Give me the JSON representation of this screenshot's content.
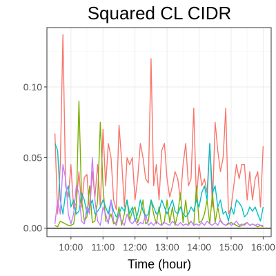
{
  "chart_data": {
    "type": "line",
    "title": "Squared CL CIDR",
    "xlabel": "Time (hour)",
    "ylabel": "",
    "xlim": [
      9.25,
      16.25
    ],
    "ylim": [
      -0.006,
      0.142
    ],
    "x_ticks": [
      {
        "value": 10,
        "label": "10:00"
      },
      {
        "value": 11,
        "label": "11:00"
      },
      {
        "value": 12,
        "label": "12:00"
      },
      {
        "value": 13,
        "label": "13:00"
      },
      {
        "value": 14,
        "label": "14:00"
      },
      {
        "value": 15,
        "label": "15:00"
      },
      {
        "value": 16,
        "label": "16:00"
      }
    ],
    "y_ticks": [
      {
        "value": 0.0,
        "label": "0.00"
      },
      {
        "value": 0.05,
        "label": "0.05"
      },
      {
        "value": 0.1,
        "label": "0.10"
      }
    ],
    "hline": 0,
    "grid": true,
    "legend": "none",
    "series": [
      {
        "color": "#F8766D",
        "x": [
          9.5,
          9.583,
          9.667,
          9.75,
          9.833,
          9.917,
          10.0,
          10.083,
          10.167,
          10.25,
          10.333,
          10.417,
          10.5,
          10.583,
          10.667,
          10.75,
          10.833,
          10.917,
          11.0,
          11.083,
          11.167,
          11.25,
          11.333,
          11.417,
          11.5,
          11.583,
          11.667,
          11.75,
          11.833,
          11.917,
          12.0,
          12.083,
          12.167,
          12.25,
          12.333,
          12.417,
          12.5,
          12.583,
          12.667,
          12.75,
          12.833,
          12.917,
          13.0,
          13.083,
          13.167,
          13.25,
          13.333,
          13.417,
          13.5,
          13.583,
          13.667,
          13.75,
          13.833,
          13.917,
          14.0,
          14.083,
          14.167,
          14.25,
          14.333,
          14.417,
          14.5,
          14.583,
          14.667,
          14.75,
          14.833,
          14.917,
          15.0,
          15.083,
          15.167,
          15.25,
          15.333,
          15.417,
          15.5,
          15.583,
          15.667,
          15.75,
          15.833,
          15.917,
          16.0
        ],
        "y": [
          0.067,
          0.01,
          0.045,
          0.137,
          0.03,
          0.022,
          0.045,
          0.014,
          0.018,
          0.04,
          0.015,
          0.036,
          0.038,
          0.012,
          0.04,
          0.022,
          0.045,
          0.015,
          0.07,
          0.03,
          0.06,
          0.05,
          0.02,
          0.013,
          0.073,
          0.048,
          0.015,
          0.05,
          0.045,
          0.05,
          0.02,
          0.035,
          0.06,
          0.05,
          0.035,
          0.032,
          0.12,
          0.03,
          0.045,
          0.02,
          0.055,
          0.06,
          0.035,
          0.022,
          0.03,
          0.04,
          0.035,
          0.02,
          0.045,
          0.06,
          0.03,
          0.035,
          0.085,
          0.02,
          0.045,
          0.03,
          0.035,
          0.025,
          0.06,
          0.015,
          0.075,
          0.055,
          0.04,
          0.05,
          0.085,
          0.01,
          0.015,
          0.03,
          0.045,
          0.035,
          0.045,
          0.045,
          0.02,
          0.04,
          0.02,
          0.035,
          0.04,
          0.015,
          0.058
        ]
      },
      {
        "color": "#7CAE00",
        "x": [
          9.5,
          9.583,
          9.667,
          9.75,
          9.833,
          9.917,
          10.0,
          10.083,
          10.167,
          10.25,
          10.333,
          10.417,
          10.5,
          10.583,
          10.667,
          10.75,
          10.833,
          10.917,
          11.0,
          11.083,
          11.167,
          11.25,
          11.333,
          11.417,
          11.5,
          11.583,
          11.667,
          11.75,
          11.833,
          11.917,
          12.0,
          12.083,
          12.167,
          12.25,
          12.333,
          12.417,
          12.5,
          12.583,
          12.667,
          12.75,
          12.833,
          12.917,
          13.0,
          13.083,
          13.167,
          13.25,
          13.333,
          13.417,
          13.5,
          13.583,
          13.667,
          13.75,
          13.833,
          13.917,
          14.0,
          14.083,
          14.167,
          14.25,
          14.333,
          14.417,
          14.5,
          14.583,
          14.667,
          14.75,
          14.833,
          14.917,
          15.0,
          15.083,
          15.167,
          15.25,
          15.333,
          15.417,
          15.5,
          15.583,
          15.667,
          15.75,
          15.833,
          15.917,
          16.0
        ],
        "y": [
          0.002,
          0.001,
          0.005,
          0.004,
          0.003,
          0.002,
          0.002,
          0.003,
          0.015,
          0.09,
          0.02,
          0.005,
          0.008,
          0.03,
          0.004,
          0.005,
          0.02,
          0.075,
          0.03,
          0.005,
          0.005,
          0.01,
          0.003,
          0.004,
          0.015,
          0.002,
          0.01,
          0.02,
          0.005,
          0.012,
          0.015,
          0.004,
          0.01,
          0.02,
          0.003,
          0.005,
          0.02,
          0.01,
          0.003,
          0.015,
          0.002,
          0.005,
          0.02,
          0.004,
          0.015,
          0.002,
          0.01,
          0.025,
          0.004,
          0.02,
          0.003,
          0.005,
          0.002,
          0.03,
          0.004,
          0.005,
          0.01,
          0.02,
          0.003,
          0.025,
          0.004,
          0.015,
          0.005,
          0.003,
          0.002,
          0.003,
          0.004,
          0.003,
          0.002,
          0.001,
          0.002,
          0.003,
          0.004,
          0.002,
          0.003,
          0.002,
          0.001,
          0.002,
          0.001
        ]
      },
      {
        "color": "#00BFC4",
        "x": [
          9.5,
          9.583,
          9.667,
          9.75,
          9.833,
          9.917,
          10.0,
          10.083,
          10.167,
          10.25,
          10.333,
          10.417,
          10.5,
          10.583,
          10.667,
          10.75,
          10.833,
          10.917,
          11.0,
          11.083,
          11.167,
          11.25,
          11.333,
          11.417,
          11.5,
          11.583,
          11.667,
          11.75,
          11.833,
          11.917,
          12.0,
          12.083,
          12.167,
          12.25,
          12.333,
          12.417,
          12.5,
          12.583,
          12.667,
          12.75,
          12.833,
          12.917,
          13.0,
          13.083,
          13.167,
          13.25,
          13.333,
          13.417,
          13.5,
          13.583,
          13.667,
          13.75,
          13.833,
          13.917,
          14.0,
          14.083,
          14.167,
          14.25,
          14.333,
          14.417,
          14.5,
          14.583,
          14.667,
          14.75,
          14.833,
          14.917,
          15.0,
          15.083,
          15.167,
          15.25,
          15.333,
          15.417,
          15.5,
          15.583,
          15.667,
          15.75,
          15.833,
          15.917,
          16.0
        ],
        "y": [
          0.06,
          0.055,
          0.02,
          0.01,
          0.025,
          0.03,
          0.015,
          0.02,
          0.01,
          0.012,
          0.025,
          0.02,
          0.01,
          0.015,
          0.02,
          0.01,
          0.012,
          0.015,
          0.02,
          0.015,
          0.01,
          0.02,
          0.012,
          0.008,
          0.01,
          0.015,
          0.012,
          0.02,
          0.01,
          0.015,
          0.005,
          0.01,
          0.02,
          0.012,
          0.008,
          0.01,
          0.02,
          0.015,
          0.01,
          0.012,
          0.02,
          0.015,
          0.01,
          0.015,
          0.02,
          0.012,
          0.01,
          0.015,
          0.01,
          0.008,
          0.01,
          0.015,
          0.012,
          0.02,
          0.015,
          0.025,
          0.03,
          0.02,
          0.06,
          0.025,
          0.03,
          0.015,
          0.02,
          0.01,
          0.012,
          0.005,
          0.015,
          0.01,
          0.02,
          0.018,
          0.015,
          0.008,
          0.01,
          0.015,
          0.012,
          0.015,
          0.01,
          0.005,
          0.015
        ]
      },
      {
        "color": "#C77CFF",
        "x": [
          9.5,
          9.583,
          9.667,
          9.75,
          9.833,
          9.917,
          10.0,
          10.083,
          10.167,
          10.25,
          10.333,
          10.417,
          10.5,
          10.583,
          10.667,
          10.75,
          10.833,
          10.917,
          11.0,
          11.083,
          11.167,
          11.25,
          11.333,
          11.417,
          11.5,
          11.583,
          11.667,
          11.75,
          11.833,
          11.917,
          12.0,
          12.083,
          12.167,
          12.25,
          12.333,
          12.417,
          12.5,
          12.583,
          12.667,
          12.75,
          12.833,
          12.917,
          13.0,
          13.083,
          13.167,
          13.25,
          13.333,
          13.417,
          13.5,
          13.583,
          13.667,
          13.75,
          13.833,
          13.917,
          14.0,
          14.083,
          14.167,
          14.25,
          14.333,
          14.417,
          14.5,
          14.583,
          14.667,
          14.75,
          14.833,
          14.917,
          15.0,
          15.083,
          15.167,
          15.25,
          15.333,
          15.417,
          15.5,
          15.583,
          15.667,
          15.75,
          15.833,
          15.917,
          16.0
        ],
        "y": [
          0.003,
          0.02,
          0.01,
          0.045,
          0.035,
          0.01,
          0.003,
          0.01,
          0.03,
          0.025,
          0.005,
          0.003,
          0.015,
          0.01,
          0.05,
          0.02,
          0.005,
          0.002,
          0.015,
          0.01,
          0.003,
          0.02,
          0.005,
          0.002,
          0.01,
          0.005,
          0.002,
          0.01,
          0.005,
          0.003,
          0.006,
          0.002,
          0.004,
          0.003,
          0.01,
          0.002,
          0.004,
          0.002,
          0.005,
          0.003,
          0.002,
          0.004,
          0.003,
          0.002,
          0.005,
          0.003,
          0.002,
          0.004,
          0.002,
          0.003,
          0.002,
          0.005,
          0.002,
          0.003,
          0.002,
          0.004,
          0.002,
          0.005,
          0.003,
          0.002,
          0.004,
          0.002,
          0.006,
          0.003,
          0.002,
          0.004,
          0.002,
          0.003,
          0.005,
          0.002,
          0.003,
          0.002,
          0.004,
          0.002,
          0.003,
          0.002,
          0.003,
          0.002,
          0.002
        ]
      }
    ]
  }
}
